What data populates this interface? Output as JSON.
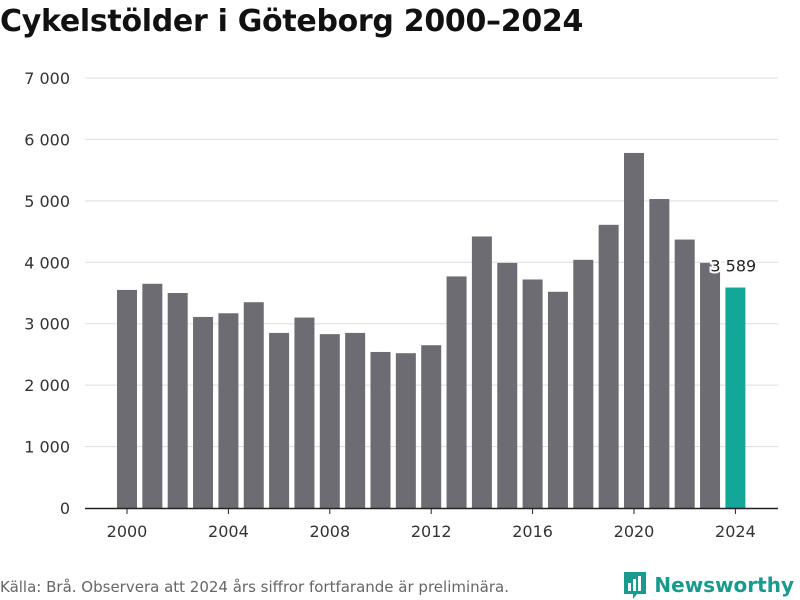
{
  "header": {
    "title": "Cykelstölder i Göteborg 2000–2024"
  },
  "footer": {
    "source": "Källa: Brå. Observera att 2024 års siffror fortfarande är preliminära.",
    "brand": "Newsworthy"
  },
  "colors": {
    "bar": "#6d6c72",
    "highlight": "#13a79a",
    "grid": "#dddddd",
    "brand": "#1a9a8d"
  },
  "chart_data": {
    "type": "bar",
    "title": "Cykelstölder i Göteborg 2000–2024",
    "xlabel": "",
    "ylabel": "",
    "categories": [
      "2000",
      "2001",
      "2002",
      "2003",
      "2004",
      "2005",
      "2006",
      "2007",
      "2008",
      "2009",
      "2010",
      "2011",
      "2012",
      "2013",
      "2014",
      "2015",
      "2016",
      "2017",
      "2018",
      "2019",
      "2020",
      "2021",
      "2022",
      "2023",
      "2024"
    ],
    "values": [
      3550,
      3650,
      3500,
      3110,
      3170,
      3350,
      2850,
      3100,
      2830,
      2850,
      2540,
      2520,
      2650,
      3770,
      4420,
      3990,
      3720,
      3520,
      4040,
      4610,
      5780,
      5030,
      4370,
      3990,
      3589
    ],
    "highlight_index": 24,
    "data_labels": [
      {
        "index": 24,
        "text": "3 589"
      }
    ],
    "ylim": [
      0,
      7000
    ],
    "yticks": [
      0,
      1000,
      2000,
      3000,
      4000,
      5000,
      6000,
      7000
    ],
    "ytick_labels": [
      "0",
      "1 000",
      "2 000",
      "3 000",
      "4 000",
      "5 000",
      "6 000",
      "7 000"
    ],
    "xtick_labels": [
      "2000",
      "2004",
      "2008",
      "2012",
      "2016",
      "2020",
      "2024"
    ],
    "grid": true
  }
}
